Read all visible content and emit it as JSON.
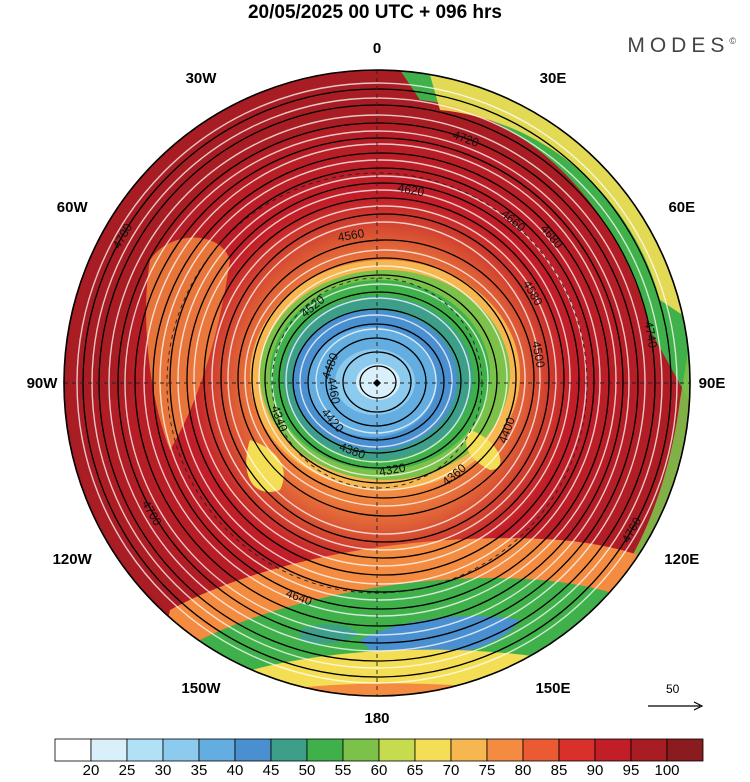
{
  "title": "20/05/2025  00 UTC  + 096 hrs",
  "brand": "MODES",
  "brand_mark": "©",
  "longitude_labels": [
    {
      "text": "0",
      "deg": 0
    },
    {
      "text": "30E",
      "deg": 30
    },
    {
      "text": "60E",
      "deg": 60
    },
    {
      "text": "90E",
      "deg": 90
    },
    {
      "text": "120E",
      "deg": 120
    },
    {
      "text": "150E",
      "deg": 150
    },
    {
      "text": "180",
      "deg": 180
    },
    {
      "text": "150W",
      "deg": 210
    },
    {
      "text": "120W",
      "deg": 240
    },
    {
      "text": "90W",
      "deg": 270
    },
    {
      "text": "60W",
      "deg": 300
    },
    {
      "text": "30W",
      "deg": 330
    }
  ],
  "contour_labels": [
    "4780",
    "4720",
    "4660",
    "4580",
    "4500",
    "4400",
    "4360",
    "4340",
    "4320",
    "4380",
    "4420",
    "4460",
    "4480",
    "4520",
    "4560",
    "4620",
    "4680",
    "4740",
    "4760",
    "4640",
    "4700"
  ],
  "wind_scale_label": "50",
  "colorbar": {
    "ticks": [
      "20",
      "25",
      "30",
      "35",
      "40",
      "45",
      "50",
      "55",
      "60",
      "65",
      "70",
      "75",
      "80",
      "85",
      "90",
      "95",
      "100"
    ],
    "colors": [
      "#ffffff",
      "#d9f0fb",
      "#b2e0f5",
      "#8ccbee",
      "#63ade0",
      "#4a8fcf",
      "#3d9f8a",
      "#3fb04a",
      "#7cc24a",
      "#c6dc4e",
      "#f4de56",
      "#f6b650",
      "#f38b40",
      "#ea5a33",
      "#d9302b",
      "#c11e28",
      "#a71d23",
      "#8a1b1e"
    ]
  }
}
